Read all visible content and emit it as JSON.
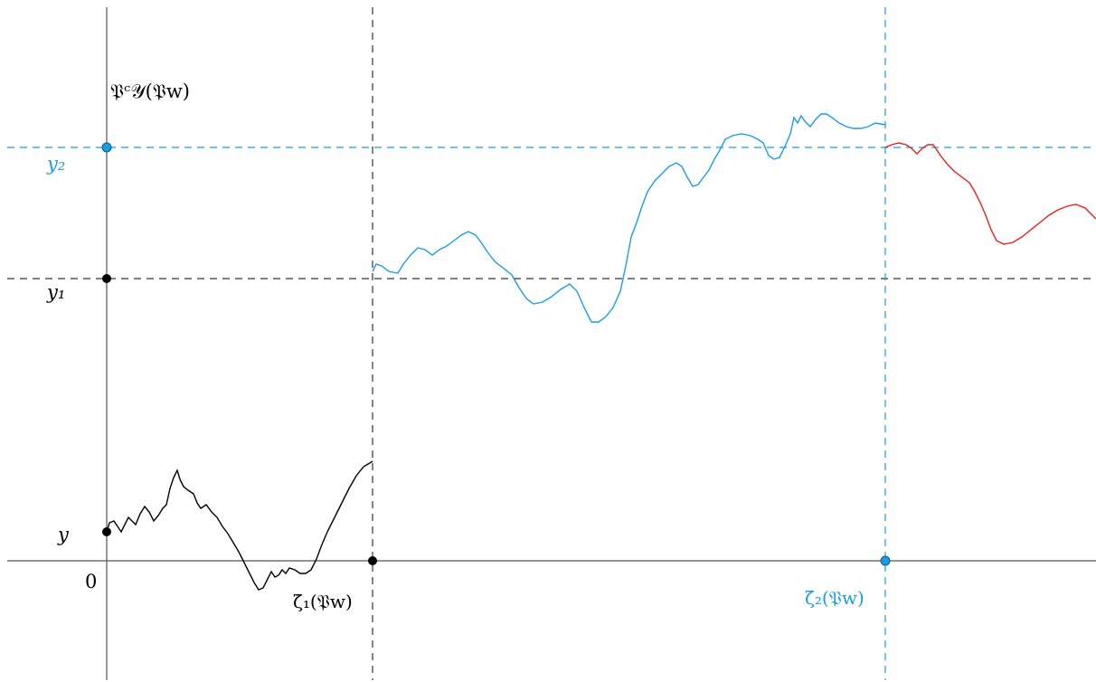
{
  "labels": {
    "process": "𝔓ᶜ𝒴(𝔓w)",
    "y": "y",
    "y1": "y₁",
    "y2": "y₂",
    "origin": "0",
    "zeta1": "ζ̄₁(𝔓w)",
    "zeta2": "ζ̄₂(𝔓w)"
  },
  "colors": {
    "black": "#000000",
    "blue": "#1a9ee0",
    "red": "#e8201c"
  }
}
